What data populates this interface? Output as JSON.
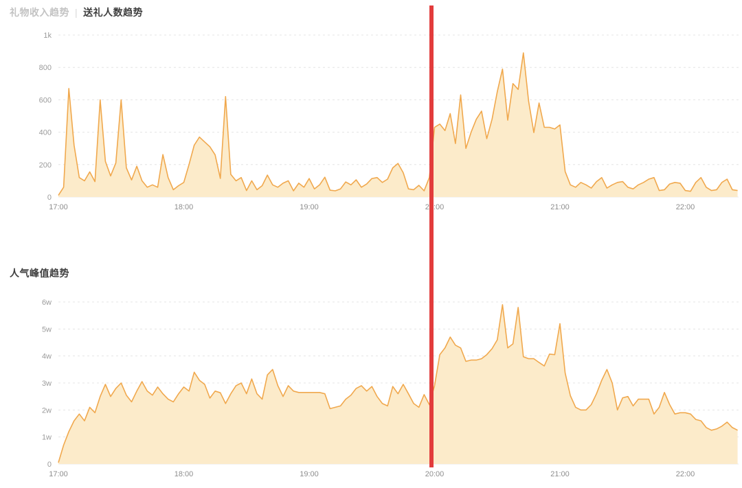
{
  "header": {
    "title_income": "礼物收入趋势",
    "separator": "|",
    "title_givers": "送礼人数趋势",
    "title_popularity": "人气峰值趋势"
  },
  "colors": {
    "line": "#f0a84d",
    "fill": "#fcebca",
    "grid": "#e4e4e4",
    "axis": "#e8e8e8",
    "tick_text": "#9b9b9b",
    "marker": "#e23c3c",
    "title_muted": "#c3c3c3",
    "title_dark": "#3f3f3f"
  },
  "marker_line": {
    "time_min": 1198.5,
    "color": "#e23c3c"
  },
  "chart_data": [
    {
      "type": "area",
      "title": "礼物收入趋势 | 送礼人数趋势",
      "series_name": "礼物收入 / 送礼人数",
      "x_start_min": 1020,
      "x_step_min": 2.5,
      "x_ticks": [
        {
          "min": 1020,
          "label": "17:00"
        },
        {
          "min": 1080,
          "label": "18:00"
        },
        {
          "min": 1140,
          "label": "19:00"
        },
        {
          "min": 1200,
          "label": "20:00"
        },
        {
          "min": 1260,
          "label": "21:00"
        },
        {
          "min": 1320,
          "label": "22:00"
        }
      ],
      "y_ticks": [
        {
          "value": 0,
          "label": "0"
        },
        {
          "value": 200,
          "label": "200"
        },
        {
          "value": 400,
          "label": "400"
        },
        {
          "value": 600,
          "label": "600"
        },
        {
          "value": 800,
          "label": "800"
        },
        {
          "value": 1000,
          "label": "1k"
        }
      ],
      "ylim": [
        0,
        1050
      ],
      "grid": "dashed",
      "legend": "none",
      "values": [
        10,
        60,
        670,
        320,
        120,
        100,
        155,
        95,
        600,
        220,
        130,
        210,
        600,
        180,
        105,
        190,
        100,
        60,
        75,
        60,
        262,
        120,
        45,
        70,
        90,
        200,
        320,
        370,
        340,
        310,
        260,
        115,
        620,
        140,
        100,
        120,
        40,
        100,
        45,
        70,
        135,
        75,
        60,
        85,
        100,
        38,
        85,
        60,
        114,
        50,
        75,
        122,
        42,
        38,
        50,
        93,
        75,
        106,
        60,
        80,
        114,
        120,
        90,
        110,
        180,
        207,
        150,
        50,
        45,
        72,
        38,
        120,
        430,
        450,
        410,
        515,
        330,
        630,
        300,
        400,
        480,
        530,
        360,
        480,
        650,
        790,
        474,
        700,
        664,
        890,
        592,
        398,
        580,
        430,
        430,
        420,
        445,
        157,
        75,
        60,
        90,
        75,
        55,
        95,
        120,
        55,
        75,
        90,
        95,
        60,
        50,
        75,
        90,
        110,
        120,
        40,
        45,
        80,
        90,
        85,
        40,
        35,
        90,
        120,
        60,
        40,
        45,
        90,
        110,
        45,
        40
      ]
    },
    {
      "type": "area",
      "title": "人气峰值趋势",
      "series_name": "人气峰值",
      "unit": "w",
      "x_start_min": 1020,
      "x_step_min": 2.5,
      "x_ticks": [
        {
          "min": 1020,
          "label": "17:00"
        },
        {
          "min": 1080,
          "label": "18:00"
        },
        {
          "min": 1140,
          "label": "19:00"
        },
        {
          "min": 1200,
          "label": "20:00"
        },
        {
          "min": 1260,
          "label": "21:00"
        },
        {
          "min": 1320,
          "label": "22:00"
        }
      ],
      "y_ticks": [
        {
          "value": 0,
          "label": "0"
        },
        {
          "value": 1,
          "label": "1w"
        },
        {
          "value": 2,
          "label": "2w"
        },
        {
          "value": 3,
          "label": "3w"
        },
        {
          "value": 4,
          "label": "4w"
        },
        {
          "value": 5,
          "label": "5w"
        },
        {
          "value": 6,
          "label": "6w"
        }
      ],
      "ylim": [
        0,
        6.3
      ],
      "grid": "dashed",
      "legend": "none",
      "values": [
        0.05,
        0.7,
        1.2,
        1.6,
        1.85,
        1.6,
        2.1,
        1.9,
        2.5,
        2.95,
        2.5,
        2.8,
        3.0,
        2.55,
        2.3,
        2.7,
        3.05,
        2.7,
        2.55,
        2.85,
        2.6,
        2.4,
        2.3,
        2.6,
        2.85,
        2.7,
        3.4,
        3.1,
        2.95,
        2.44,
        2.7,
        2.64,
        2.24,
        2.6,
        2.9,
        3.0,
        2.6,
        3.15,
        2.6,
        2.4,
        3.3,
        3.5,
        2.9,
        2.5,
        2.9,
        2.7,
        2.65,
        2.65,
        2.65,
        2.65,
        2.65,
        2.6,
        2.05,
        2.1,
        2.15,
        2.4,
        2.55,
        2.8,
        2.9,
        2.7,
        2.87,
        2.5,
        2.24,
        2.15,
        2.87,
        2.6,
        2.95,
        2.6,
        2.24,
        2.1,
        2.57,
        2.2,
        2.9,
        4.05,
        4.3,
        4.7,
        4.4,
        4.3,
        3.8,
        3.85,
        3.85,
        3.9,
        4.05,
        4.27,
        4.6,
        5.9,
        4.3,
        4.45,
        5.8,
        3.97,
        3.9,
        3.9,
        3.76,
        3.63,
        4.07,
        4.05,
        5.2,
        3.37,
        2.53,
        2.1,
        2.0,
        2.0,
        2.2,
        2.6,
        3.1,
        3.5,
        3.0,
        2.0,
        2.45,
        2.5,
        2.15,
        2.4,
        2.4,
        2.4,
        1.85,
        2.1,
        2.65,
        2.2,
        1.85,
        1.9,
        1.9,
        1.85,
        1.65,
        1.6,
        1.35,
        1.25,
        1.3,
        1.4,
        1.55,
        1.35,
        1.25
      ]
    }
  ]
}
